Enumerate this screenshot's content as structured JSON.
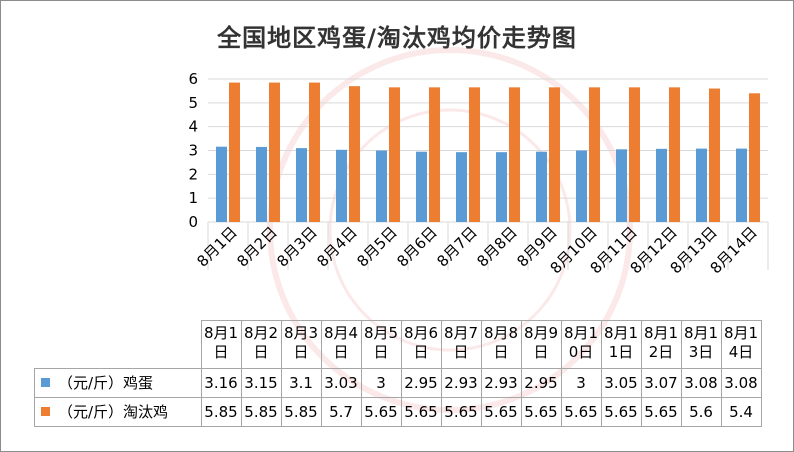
{
  "chart_data": {
    "type": "bar",
    "title": "全国地区鸡蛋/淘汰鸡均价走势图",
    "categories": [
      "8月1日",
      "8月2日",
      "8月3日",
      "8月4日",
      "8月5日",
      "8月6日",
      "8月7日",
      "8月8日",
      "8月9日",
      "8月10日",
      "8月11日",
      "8月12日",
      "8月13日",
      "8月14日"
    ],
    "table_headers": [
      "8月1日",
      "8月2日",
      "8月3日",
      "8月4日",
      "8月5日",
      "8月6日",
      "8月7日",
      "8月8日",
      "8月9日",
      "8月10日",
      "8月11日",
      "8月12日",
      "8月13日",
      "8月14日"
    ],
    "series": [
      {
        "name": "（元/斤）鸡蛋",
        "color": "#5b9bd5",
        "values": [
          3.16,
          3.15,
          3.1,
          3.03,
          3,
          2.95,
          2.93,
          2.93,
          2.95,
          3,
          3.05,
          3.07,
          3.08,
          3.08
        ]
      },
      {
        "name": "（元/斤）淘汰鸡",
        "color": "#ed7d31",
        "values": [
          5.85,
          5.85,
          5.85,
          5.7,
          5.65,
          5.65,
          5.65,
          5.65,
          5.65,
          5.65,
          5.65,
          5.65,
          5.6,
          5.4
        ]
      }
    ],
    "y_ticks": [
      0,
      1,
      2,
      3,
      4,
      5,
      6
    ],
    "ylim": [
      0,
      6
    ],
    "grid": true,
    "legend": "data-table"
  }
}
